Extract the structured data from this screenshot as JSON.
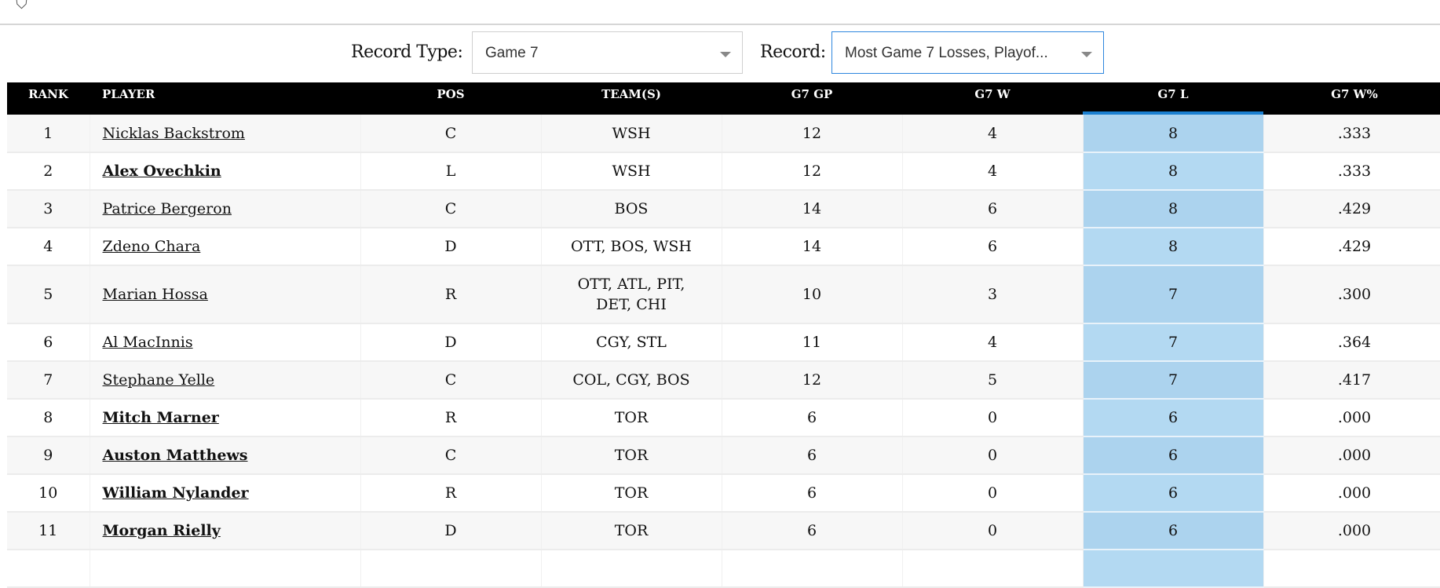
{
  "filters": {
    "record_type_label": "Record Type:",
    "record_type_value": "Game 7",
    "record_label": "Record:",
    "record_value": "Most Game 7 Losses, Playof..."
  },
  "table": {
    "columns": [
      "RANK",
      "PLAYER",
      "POS",
      "TEAM(S)",
      "G7 GP",
      "G7 W",
      "G7 L",
      "G7 W%"
    ],
    "sorted_column": "G7 L",
    "rows": [
      {
        "rank": "1",
        "player": "Nicklas Backstrom",
        "active": false,
        "pos": "C",
        "teams": "WSH",
        "gp": "12",
        "w": "4",
        "l": "8",
        "wpct": ".333"
      },
      {
        "rank": "2",
        "player": "Alex Ovechkin",
        "active": true,
        "pos": "L",
        "teams": "WSH",
        "gp": "12",
        "w": "4",
        "l": "8",
        "wpct": ".333"
      },
      {
        "rank": "3",
        "player": "Patrice Bergeron",
        "active": false,
        "pos": "C",
        "teams": "BOS",
        "gp": "14",
        "w": "6",
        "l": "8",
        "wpct": ".429"
      },
      {
        "rank": "4",
        "player": "Zdeno Chara",
        "active": false,
        "pos": "D",
        "teams": "OTT, BOS, WSH",
        "gp": "14",
        "w": "6",
        "l": "8",
        "wpct": ".429"
      },
      {
        "rank": "5",
        "player": "Marian Hossa",
        "active": false,
        "pos": "R",
        "teams": "OTT, ATL, PIT, DET, CHI",
        "gp": "10",
        "w": "3",
        "l": "7",
        "wpct": ".300"
      },
      {
        "rank": "6",
        "player": "Al MacInnis",
        "active": false,
        "pos": "D",
        "teams": "CGY, STL",
        "gp": "11",
        "w": "4",
        "l": "7",
        "wpct": ".364"
      },
      {
        "rank": "7",
        "player": "Stephane Yelle",
        "active": false,
        "pos": "C",
        "teams": "COL, CGY, BOS",
        "gp": "12",
        "w": "5",
        "l": "7",
        "wpct": ".417"
      },
      {
        "rank": "8",
        "player": "Mitch Marner",
        "active": true,
        "pos": "R",
        "teams": "TOR",
        "gp": "6",
        "w": "0",
        "l": "6",
        "wpct": ".000"
      },
      {
        "rank": "9",
        "player": "Auston Matthews",
        "active": true,
        "pos": "C",
        "teams": "TOR",
        "gp": "6",
        "w": "0",
        "l": "6",
        "wpct": ".000"
      },
      {
        "rank": "10",
        "player": "William Nylander",
        "active": true,
        "pos": "R",
        "teams": "TOR",
        "gp": "6",
        "w": "0",
        "l": "6",
        "wpct": ".000"
      },
      {
        "rank": "11",
        "player": "Morgan Rielly",
        "active": true,
        "pos": "D",
        "teams": "TOR",
        "gp": "6",
        "w": "0",
        "l": "6",
        "wpct": ".000"
      },
      {
        "rank": "",
        "player": "",
        "active": false,
        "pos": "",
        "teams": "",
        "gp": "",
        "w": "",
        "l": "",
        "wpct": ""
      }
    ]
  },
  "colors": {
    "header_bg": "#000000",
    "sorted_col": "#b3d9f2",
    "sorted_indicator": "#1a7fd0",
    "active_select_border": "#2e86de"
  }
}
